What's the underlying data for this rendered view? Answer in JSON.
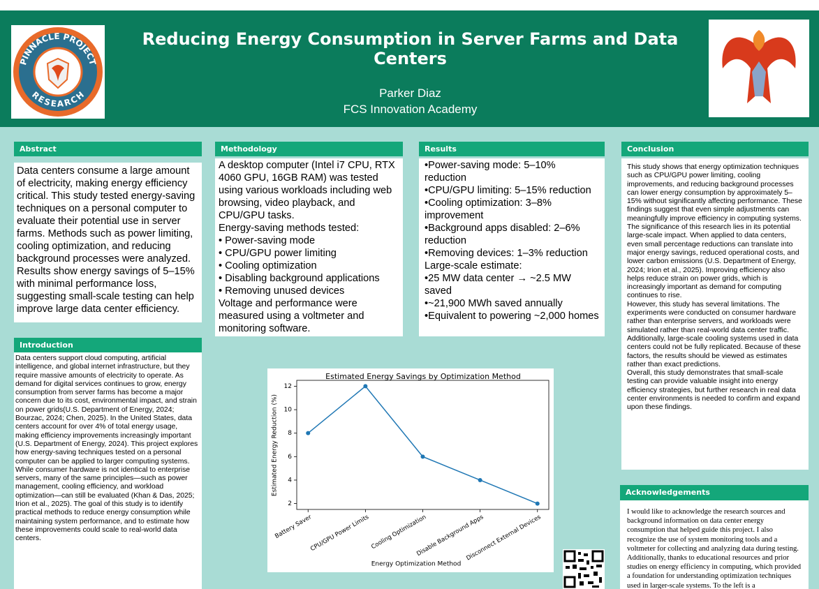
{
  "header": {
    "title": "Reducing Energy Consumption in Server Farms and Data Centers",
    "author": "Parker Diaz",
    "school": "FCS Innovation Academy",
    "logo_top": "PINNACLE PROJECT",
    "logo_bottom": "RESEARCH"
  },
  "abstract": {
    "heading": "Abstract",
    "text": "Data centers consume a large amount of electricity, making energy efficiency critical. This study tested energy-saving techniques on a personal computer to evaluate their potential use in server farms. Methods such as power limiting, cooling optimization, and reducing background processes were analyzed. Results show energy savings of 5–15% with minimal performance loss, suggesting small-scale testing can help improve large data center efficiency."
  },
  "introduction": {
    "heading": "Introduction",
    "text": "Data centers support cloud computing, artificial intelligence, and global internet infrastructure, but they require massive amounts of electricity to operate. As demand for digital services continues to grow, energy consumption from server farms has become a major concern due to its cost, environmental impact, and strain on power grids(U.S. Department of Energy, 2024; Bourzac, 2024; Chen, 2025). In the United States, data centers account for over 4% of total energy usage, making efficiency improvements increasingly important (U.S. Department of Energy, 2024). This project explores how energy-saving techniques tested on a personal computer can be applied to larger computing systems. While consumer hardware is not identical to enterprise servers, many of the same principles—such as power management, cooling efficiency, and workload optimization—can still be evaluated (Khan & Das, 2025; Irion et al., 2025). The goal of this study is to identify practical methods to reduce energy consumption while maintaining system performance, and to estimate how these improvements could scale to real-world data centers."
  },
  "methodology": {
    "heading": "Methodology",
    "intro": "A desktop computer (Intel i7 CPU, RTX 4060 GPU, 16GB RAM) was tested using various workloads including web browsing, video playback, and CPU/GPU tasks.",
    "list_heading": "Energy-saving methods tested:",
    "items": [
      "• Power-saving mode",
      "• CPU/GPU power limiting",
      "• Cooling optimization",
      "• Disabling background applications",
      "• Removing unused devices"
    ],
    "outro": "Voltage and performance were measured using a voltmeter and monitoring software."
  },
  "results": {
    "heading": "Results",
    "items": [
      "•Power-saving mode: 5–10% reduction",
      "•CPU/GPU limiting: 5–15% reduction",
      "•Cooling optimization: 3–8% improvement",
      "•Background apps disabled: 2–6% reduction",
      "•Removing devices: 1–3% reduction"
    ],
    "estimate_heading": "Large-scale estimate:",
    "estimates": [
      "•25 MW data center → ~2.5 MW saved",
      "•~21,900 MWh saved annually",
      "•Equivalent to powering ~2,000 homes"
    ]
  },
  "conclusion": {
    "heading": "Conclusion",
    "paragraphs": [
      "This study shows that energy optimization techniques such as CPU/GPU power limiting, cooling improvements, and reducing background processes can lower energy consumption by approximately 5–15% without significantly affecting performance. These findings suggest that even simple adjustments can meaningfully improve efficiency in computing systems.",
      "The significance of this research lies in its potential large-scale impact. When applied to data centers, even small percentage reductions can translate into major energy savings, reduced operational costs, and lower carbon emissions (U.S. Department of Energy, 2024; Irion et al., 2025). Improving efficiency also helps reduce strain on power grids, which is increasingly important as demand for computing continues to rise.",
      "However, this study has several limitations. The experiments were conducted on consumer hardware rather than enterprise servers, and workloads were simulated rather than real-world data center traffic. Additionally, large-scale cooling systems used in data centers could not be fully replicated. Because of these factors, the results should be viewed as estimates rather than exact predictions.",
      "Overall, this study demonstrates that small-scale testing can provide valuable insight into energy efficiency strategies, but further research in real data center environments is needed to confirm and expand upon these findings."
    ]
  },
  "acknowledgements": {
    "heading": "Acknowledgements",
    "text": "I would like to acknowledge the research sources and background information on data center energy consumption that helped guide this project. I also recognize the use of system monitoring tools and a voltmeter for collecting and analyzing data during testing. Additionally, thanks to educational resources and prior studies on energy efficiency in computing, which provided a foundation for understanding optimization techniques used in larger-scale systems. To the left is a"
  },
  "chart_data": {
    "type": "line",
    "title": "Estimated Energy Savings by Optimization Method",
    "x_label": "Energy Optimization Method",
    "y_label": "Estimated Energy Reduction (%)",
    "categories": [
      "Battery Saver",
      "CPU/GPU Power Limits",
      "Cooling Optimization",
      "Disable Background Apps",
      "Disconnect External Devices"
    ],
    "values": [
      8,
      12,
      6,
      4,
      2
    ],
    "color": "#1f77b4",
    "ylim": [
      1.5,
      12.5
    ],
    "yticks": [
      2,
      4,
      6,
      8,
      10,
      12
    ],
    "grid": false
  }
}
